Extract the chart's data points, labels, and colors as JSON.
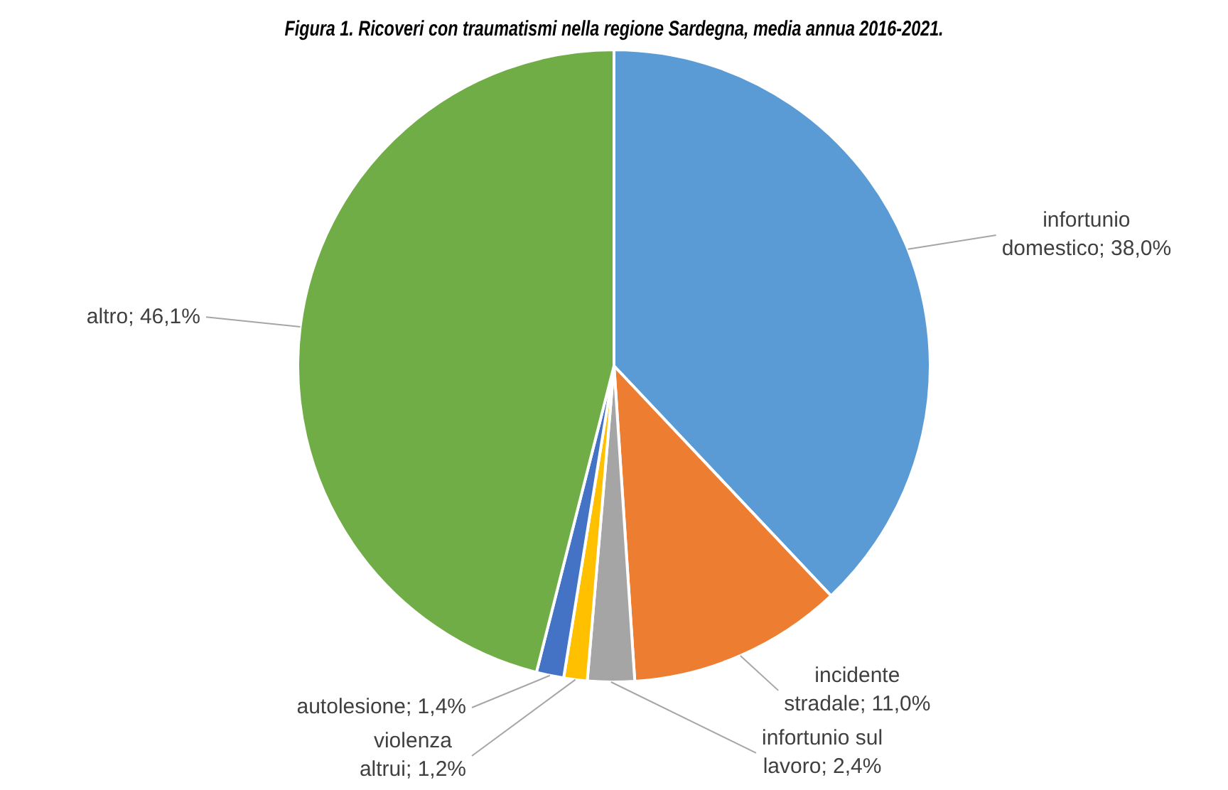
{
  "chart_data": {
    "type": "pie",
    "title": "Figura 1. Ricoveri con traumatismi nella regione Sardegna, media annua 2016-2021.",
    "categories": [
      "infortunio domestico",
      "incidente stradale",
      "infortunio sul lavoro",
      "violenza altrui",
      "autolesione",
      "altro"
    ],
    "values": [
      38.0,
      11.0,
      2.4,
      1.2,
      1.4,
      46.1
    ],
    "colors": [
      "#5b9bd5",
      "#ed7d31",
      "#a5a5a5",
      "#ffc000",
      "#4472c4",
      "#70ad47"
    ],
    "value_labels": [
      "38,0%",
      "11,0%",
      "2,4%",
      "1,2%",
      "1,4%",
      "46,1%"
    ],
    "legend": false
  }
}
